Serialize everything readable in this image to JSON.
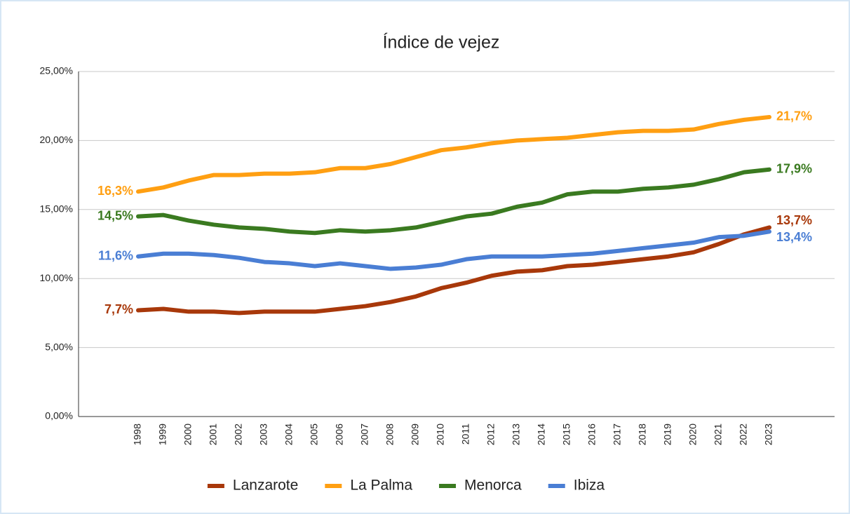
{
  "chart_data": {
    "type": "line",
    "title": "Índice de vejez",
    "categories": [
      "1998",
      "1999",
      "2000",
      "2001",
      "2002",
      "2003",
      "2004",
      "2005",
      "2006",
      "2007",
      "2008",
      "2009",
      "2010",
      "2011",
      "2012",
      "2013",
      "2014",
      "2015",
      "2016",
      "2017",
      "2018",
      "2019",
      "2020",
      "2021",
      "2022",
      "2023"
    ],
    "series": [
      {
        "name": "Lanzarote",
        "color": "#a8380a",
        "values": [
          7.7,
          7.8,
          7.6,
          7.6,
          7.5,
          7.6,
          7.6,
          7.6,
          7.8,
          8.0,
          8.3,
          8.7,
          9.3,
          9.7,
          10.2,
          10.5,
          10.6,
          10.9,
          11.0,
          11.2,
          11.4,
          11.6,
          11.9,
          12.5,
          13.2,
          13.7
        ],
        "value_labels": [
          "7,7%",
          null,
          null,
          null,
          null,
          null,
          null,
          null,
          null,
          null,
          null,
          null,
          null,
          null,
          null,
          null,
          null,
          null,
          null,
          null,
          null,
          null,
          null,
          null,
          null,
          "13,7%"
        ]
      },
      {
        "name": "La Palma",
        "color": "#ff9f12",
        "values": [
          16.3,
          16.6,
          17.1,
          17.5,
          17.5,
          17.6,
          17.6,
          17.7,
          18.0,
          18.0,
          18.3,
          18.8,
          19.3,
          19.5,
          19.8,
          20.0,
          20.1,
          20.2,
          20.4,
          20.6,
          20.7,
          20.7,
          20.8,
          21.2,
          21.5,
          21.7
        ],
        "value_labels": [
          "16,3%",
          null,
          null,
          null,
          null,
          null,
          null,
          null,
          null,
          null,
          null,
          null,
          null,
          null,
          null,
          null,
          null,
          null,
          null,
          null,
          null,
          null,
          null,
          null,
          null,
          "21,7%"
        ]
      },
      {
        "name": "Menorca",
        "color": "#3a7a20",
        "values": [
          14.5,
          14.6,
          14.2,
          13.9,
          13.7,
          13.6,
          13.4,
          13.3,
          13.5,
          13.4,
          13.5,
          13.7,
          14.1,
          14.5,
          14.7,
          15.2,
          15.5,
          16.1,
          16.3,
          16.3,
          16.5,
          16.6,
          16.8,
          17.2,
          17.7,
          17.9
        ],
        "value_labels": [
          "14,5%",
          null,
          null,
          null,
          null,
          null,
          null,
          null,
          null,
          null,
          null,
          null,
          null,
          null,
          null,
          null,
          null,
          null,
          null,
          null,
          null,
          null,
          null,
          null,
          null,
          "17,9%"
        ]
      },
      {
        "name": "Ibiza",
        "color": "#4a7ed4",
        "values": [
          11.6,
          11.8,
          11.8,
          11.7,
          11.5,
          11.2,
          11.1,
          10.9,
          11.1,
          10.9,
          10.7,
          10.8,
          11.0,
          11.4,
          11.6,
          11.6,
          11.6,
          11.7,
          11.8,
          12.0,
          12.2,
          12.4,
          12.6,
          13.0,
          13.1,
          13.4
        ],
        "value_labels": [
          "11,6%",
          null,
          null,
          null,
          null,
          null,
          null,
          null,
          null,
          null,
          null,
          null,
          null,
          null,
          null,
          null,
          null,
          null,
          null,
          null,
          null,
          null,
          null,
          null,
          null,
          "13,4%"
        ]
      }
    ],
    "ylim": [
      0,
      25
    ],
    "yticks": [
      {
        "value": 0,
        "label": "0,00%"
      },
      {
        "value": 5,
        "label": "5,00%"
      },
      {
        "value": 10,
        "label": "10,00%"
      },
      {
        "value": 15,
        "label": "15,00%"
      },
      {
        "value": 20,
        "label": "20,00%"
      },
      {
        "value": 25,
        "label": "25,00%"
      }
    ],
    "grid": true,
    "legend": "bottom"
  }
}
